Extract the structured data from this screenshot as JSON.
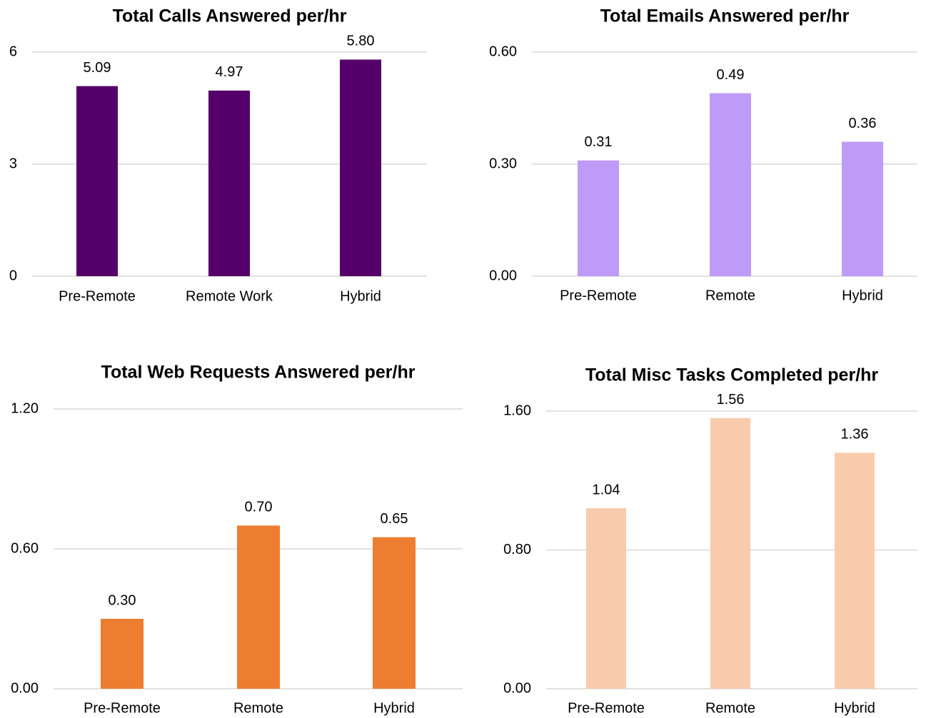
{
  "chart_data": [
    {
      "type": "bar",
      "title": "Total Calls Answered per/hr",
      "categories": [
        "Pre-Remote",
        "Remote Work",
        "Hybrid"
      ],
      "values": [
        5.09,
        4.97,
        5.8
      ],
      "value_labels": [
        "5.09",
        "4.97",
        "5.80"
      ],
      "color": "#55006a",
      "ylim": [
        0,
        6
      ],
      "yticks": [
        0,
        3,
        6
      ],
      "grid": true
    },
    {
      "type": "bar",
      "title": "Total Emails Answered per/hr",
      "categories": [
        "Pre-Remote",
        "Remote",
        "Hybrid"
      ],
      "values": [
        0.31,
        0.49,
        0.36
      ],
      "value_labels": [
        "0.31",
        "0.49",
        "0.36"
      ],
      "color": "#bf9bf8",
      "ylim": [
        0,
        0.6
      ],
      "yticks": [
        {
          "value": 0,
          "label": "0.00"
        },
        {
          "value": 0.3,
          "label": "0.30"
        },
        {
          "value": 0.6,
          "label": "0.60"
        }
      ],
      "grid": true
    },
    {
      "type": "bar",
      "title": "Total Web Requests Answered per/hr",
      "categories": [
        "Pre-Remote",
        "Remote",
        "Hybrid"
      ],
      "values": [
        0.3,
        0.7,
        0.65
      ],
      "value_labels": [
        "0.30",
        "0.70",
        "0.65"
      ],
      "color": "#ed7d31",
      "ylim": [
        0,
        1.2
      ],
      "yticks": [
        {
          "value": 0,
          "label": "0.00"
        },
        {
          "value": 0.6,
          "label": "0.60"
        },
        {
          "value": 1.2,
          "label": "1.20"
        }
      ],
      "grid": true
    },
    {
      "type": "bar",
      "title": "Total Misc Tasks Completed per/hr",
      "categories": [
        "Pre-Remote",
        "Remote",
        "Hybrid"
      ],
      "values": [
        1.04,
        1.56,
        1.36
      ],
      "value_labels": [
        "1.04",
        "1.56",
        "1.36"
      ],
      "color": "#f8cbad",
      "ylim": [
        0,
        1.6
      ],
      "yticks": [
        {
          "value": 0,
          "label": "0.00"
        },
        {
          "value": 0.8,
          "label": "0.80"
        },
        {
          "value": 1.6,
          "label": "1.60"
        }
      ],
      "grid": true
    }
  ]
}
